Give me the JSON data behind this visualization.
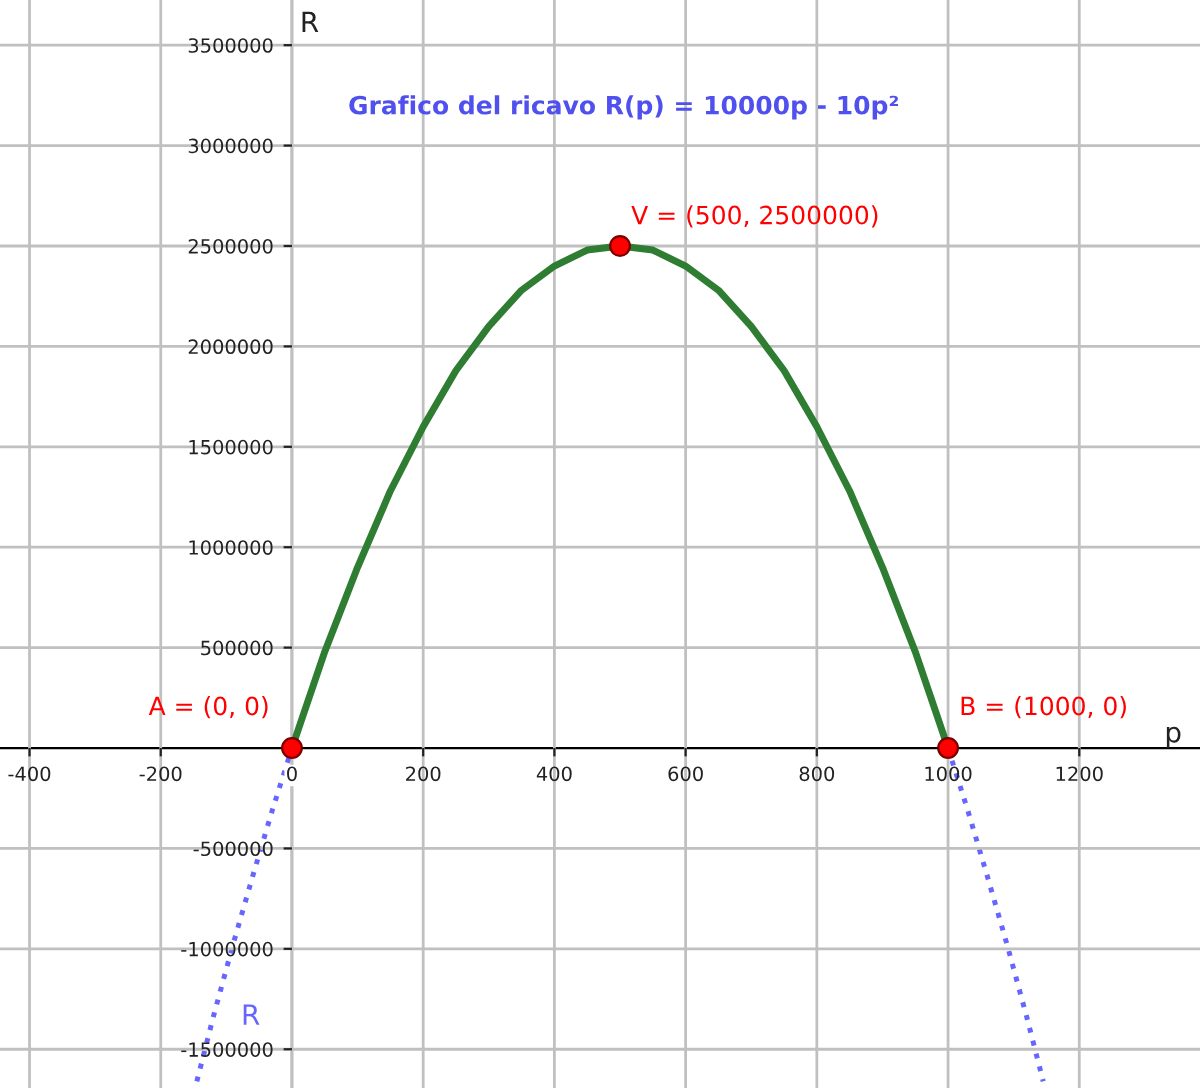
{
  "chart_data": {
    "type": "line",
    "title": "Grafico del ricavo R(p) = 10000p - 10p²",
    "xlabel": "p",
    "ylabel": "R",
    "xlim": [
      -445,
      1384
    ],
    "ylim": [
      -1693000,
      3725000
    ],
    "xticks": [
      -400,
      -200,
      0,
      200,
      400,
      600,
      800,
      1000,
      1200
    ],
    "yticks": [
      -1500000,
      -1000000,
      -500000,
      500000,
      1000000,
      1500000,
      2000000,
      2500000,
      3000000,
      3500000
    ],
    "grid": true,
    "series": [
      {
        "color": "#2e7d32",
        "line_style": "solid",
        "x": [
          0,
          50,
          100,
          150,
          200,
          250,
          300,
          350,
          400,
          450,
          500,
          550,
          600,
          650,
          700,
          750,
          800,
          850,
          900,
          950,
          1000
        ],
        "values": [
          0,
          480000,
          900000,
          1280000,
          1600000,
          1880000,
          2100000,
          2280000,
          2400000,
          2480000,
          2500000,
          2480000,
          2400000,
          2280000,
          2100000,
          1880000,
          1600000,
          1280000,
          900000,
          480000,
          0
        ]
      },
      {
        "name": "R",
        "color": "#6666ff",
        "line_style": "dotted",
        "x": [
          -145,
          -120,
          -90,
          -60,
          -30,
          0,
          null,
          1000,
          1030,
          1060,
          1090,
          1120,
          1145
        ],
        "values": [
          -1660000,
          -1340000,
          -980000,
          -640000,
          -310000,
          0,
          null,
          0,
          -310000,
          -640000,
          -980000,
          -1340000,
          -1660000
        ]
      },
      {
        "type": "scatter",
        "color": "#ff0000",
        "marker": "circle",
        "x": [
          0,
          1000,
          500
        ],
        "values": [
          0,
          0,
          2500000
        ]
      }
    ],
    "annotations": [
      {
        "text": "A = (0, 0)",
        "x": 0,
        "y": 0
      },
      {
        "text": "B = (1000, 0)",
        "x": 1000,
        "y": 0
      },
      {
        "text": "V = (500, 2500000)",
        "x": 500,
        "y": 2500000
      }
    ]
  }
}
